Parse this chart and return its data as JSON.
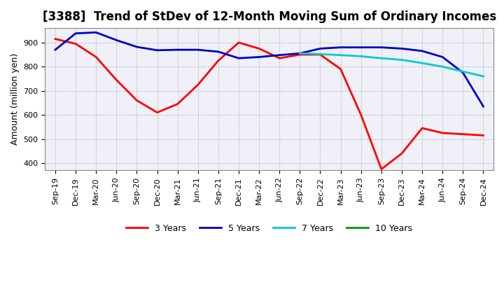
{
  "title": "[3388]  Trend of StDev of 12-Month Moving Sum of Ordinary Incomes",
  "ylabel": "Amount (million yen)",
  "ylim": [
    370,
    960
  ],
  "yticks": [
    400,
    500,
    600,
    700,
    800,
    900
  ],
  "legend_labels": [
    "3 Years",
    "5 Years",
    "7 Years",
    "10 Years"
  ],
  "colors": [
    "#ff0000",
    "#0000cc",
    "#00cccc",
    "#009900"
  ],
  "x_labels": [
    "Sep-19",
    "Dec-19",
    "Mar-20",
    "Jun-20",
    "Sep-20",
    "Dec-20",
    "Mar-21",
    "Jun-21",
    "Sep-21",
    "Dec-21",
    "Mar-22",
    "Jun-22",
    "Sep-22",
    "Dec-22",
    "Mar-23",
    "Jun-23",
    "Sep-23",
    "Dec-23",
    "Mar-24",
    "Jun-24",
    "Sep-24",
    "Dec-24"
  ],
  "series_3yr": [
    915,
    895,
    840,
    745,
    660,
    610,
    645,
    725,
    825,
    900,
    875,
    835,
    850,
    850,
    790,
    600,
    375,
    440,
    545,
    525,
    520,
    515
  ],
  "series_5yr": [
    870,
    938,
    942,
    910,
    882,
    868,
    870,
    870,
    862,
    835,
    840,
    848,
    855,
    875,
    880,
    880,
    880,
    875,
    865,
    840,
    775,
    635
  ],
  "series_7yr": [
    null,
    null,
    null,
    null,
    null,
    null,
    null,
    null,
    null,
    null,
    null,
    null,
    855,
    852,
    848,
    843,
    835,
    828,
    815,
    800,
    780,
    760
  ],
  "series_10yr": [
    null,
    null,
    null,
    null,
    null,
    null,
    null,
    null,
    null,
    null,
    null,
    null,
    null,
    null,
    null,
    null,
    null,
    null,
    null,
    null,
    null,
    null
  ],
  "bg_color": "#f0f0f8",
  "title_fontsize": 12,
  "axis_fontsize": 9,
  "tick_fontsize": 8
}
